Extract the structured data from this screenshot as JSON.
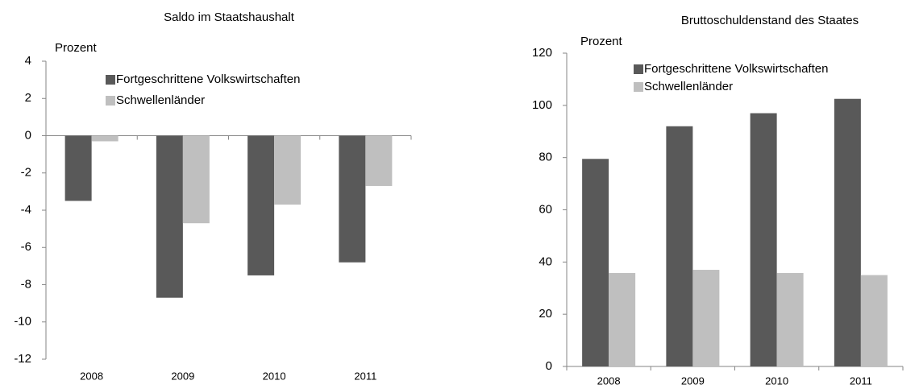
{
  "chart_data": [
    {
      "type": "bar",
      "title": "Saldo im Staatshaushalt",
      "y_label": "Prozent",
      "categories": [
        "2008",
        "2009",
        "2010",
        "2011"
      ],
      "series": [
        {
          "name": "Fortgeschrittene Volkswirtschaften",
          "color": "#595959",
          "values": [
            -3.5,
            -8.7,
            -7.5,
            -6.8
          ]
        },
        {
          "name": "Schwellenländer",
          "color": "#bfbfbf",
          "values": [
            -0.3,
            -4.7,
            -3.7,
            -2.7
          ]
        }
      ],
      "ylim": [
        -12,
        4
      ],
      "yticks": [
        -12,
        -10,
        -8,
        -6,
        -4,
        -2,
        0,
        2,
        4
      ],
      "grid": false
    },
    {
      "type": "bar",
      "title": "Bruttoschuldenstand des Staates",
      "y_label": "Prozent",
      "categories": [
        "2008",
        "2009",
        "2010",
        "2011"
      ],
      "series": [
        {
          "name": "Fortgeschrittene Volkswirtschaften",
          "color": "#595959",
          "values": [
            79.5,
            92,
            97,
            102.5
          ]
        },
        {
          "name": "Schwellenländer",
          "color": "#bfbfbf",
          "values": [
            35.8,
            37,
            35.8,
            35
          ]
        }
      ],
      "ylim": [
        0,
        120
      ],
      "yticks": [
        0,
        20,
        40,
        60,
        80,
        100,
        120
      ],
      "grid": false
    }
  ]
}
